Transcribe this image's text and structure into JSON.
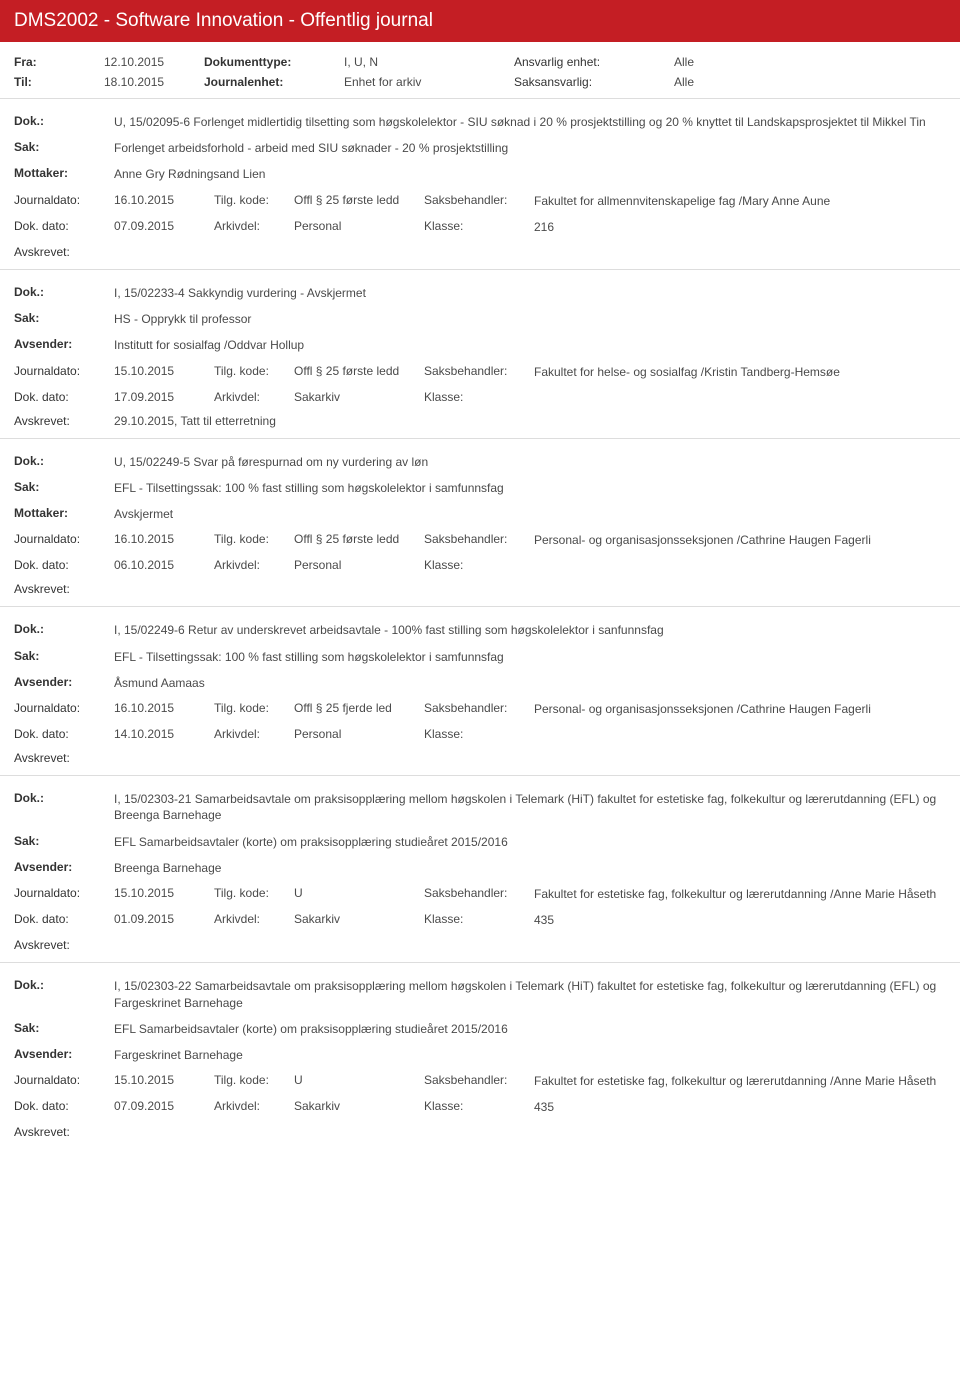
{
  "header": {
    "title": "DMS2002 - Software Innovation - Offentlig journal"
  },
  "meta": {
    "fra_label": "Fra:",
    "fra": "12.10.2015",
    "til_label": "Til:",
    "til": "18.10.2015",
    "doktype_label": "Dokumenttype:",
    "doktype": "I, U, N",
    "journalenhet_label": "Journalenhet:",
    "journalenhet": "Enhet for arkiv",
    "ansvarlig_label": "Ansvarlig enhet:",
    "ansvarlig": "Alle",
    "saksansvarlig_label": "Saksansvarlig:",
    "saksansvarlig": "Alle"
  },
  "labels": {
    "dok": "Dok.:",
    "sak": "Sak:",
    "mottaker": "Mottaker:",
    "avsender": "Avsender:",
    "journaldato": "Journaldato:",
    "tilgkode": "Tilg. kode:",
    "saksbehandler": "Saksbehandler:",
    "dokdato": "Dok. dato:",
    "arkivdel": "Arkivdel:",
    "klasse": "Klasse:",
    "avskrevet": "Avskrevet:"
  },
  "entries": [
    {
      "dok": "U, 15/02095-6 Forlenget midlertidig tilsetting som høgskolelektor -  SIU søknad i 20 % prosjektstilling og 20 % knyttet til Landskapsprosjektet til Mikkel Tin",
      "sak": "Forlenget arbeidsforhold - arbeid med SIU søknader - 20 % prosjektstilling",
      "party_label": "Mottaker:",
      "party": "Anne Gry Rødningsand Lien",
      "journaldato": "16.10.2015",
      "tilgkode": "Offl § 25 første ledd",
      "saksbehandler": "Fakultet for allmennvitenskapelige fag /Mary Anne Aune",
      "dokdato": "07.09.2015",
      "arkivdel": "Personal",
      "klasse": "216",
      "avskrevet": ""
    },
    {
      "dok": "I, 15/02233-4 Sakkyndig vurdering - Avskjermet",
      "sak": "HS - Opprykk til professor",
      "party_label": "Avsender:",
      "party": "Institutt for sosialfag /Oddvar Hollup",
      "journaldato": "15.10.2015",
      "tilgkode": "Offl § 25 første ledd",
      "saksbehandler": "Fakultet for helse- og sosialfag /Kristin Tandberg-Hemsøe",
      "dokdato": "17.09.2015",
      "arkivdel": "Sakarkiv",
      "klasse": "",
      "avskrevet": "29.10.2015, Tatt til etterretning"
    },
    {
      "dok": "U, 15/02249-5 Svar på førespurnad om ny vurdering av løn",
      "sak": "EFL - Tilsettingssak: 100 % fast stilling som høgskolelektor i samfunnsfag",
      "party_label": "Mottaker:",
      "party": "Avskjermet",
      "journaldato": "16.10.2015",
      "tilgkode": "Offl § 25 første ledd",
      "saksbehandler": "Personal- og organisasjonsseksjonen /Cathrine Haugen Fagerli",
      "dokdato": "06.10.2015",
      "arkivdel": "Personal",
      "klasse": "",
      "avskrevet": ""
    },
    {
      "dok": "I, 15/02249-6 Retur av underskrevet arbeidsavtale - 100% fast stilling som høgskolelektor i sanfunnsfag",
      "sak": "EFL - Tilsettingssak: 100 % fast stilling som høgskolelektor i samfunnsfag",
      "party_label": "Avsender:",
      "party": "Åsmund Aamaas",
      "journaldato": "16.10.2015",
      "tilgkode": "Offl § 25 fjerde led",
      "saksbehandler": "Personal- og organisasjonsseksjonen /Cathrine Haugen Fagerli",
      "dokdato": "14.10.2015",
      "arkivdel": "Personal",
      "klasse": "",
      "avskrevet": ""
    },
    {
      "dok": "I, 15/02303-21 Samarbeidsavtale om praksisopplæring mellom høgskolen i Telemark (HiT) fakultet for estetiske fag, folkekultur og lærerutdanning (EFL) og Breenga Barnehage",
      "sak": "EFL Samarbeidsavtaler (korte) om praksisopplæring studieåret 2015/2016",
      "party_label": "Avsender:",
      "party": "Breenga Barnehage",
      "journaldato": "15.10.2015",
      "tilgkode": "U",
      "saksbehandler": "Fakultet for estetiske fag, folkekultur og lærerutdanning /Anne Marie Håseth",
      "dokdato": "01.09.2015",
      "arkivdel": "Sakarkiv",
      "klasse": "435",
      "avskrevet": ""
    },
    {
      "dok": "I, 15/02303-22 Samarbeidsavtale om praksisopplæring mellom høgskolen i Telemark (HiT) fakultet for estetiske fag, folkekultur og lærerutdanning (EFL) og Fargeskrinet Barnehage",
      "sak": "EFL Samarbeidsavtaler (korte) om praksisopplæring studieåret 2015/2016",
      "party_label": "Avsender:",
      "party": "Fargeskrinet Barnehage",
      "journaldato": "15.10.2015",
      "tilgkode": "U",
      "saksbehandler": "Fakultet for estetiske fag, folkekultur og lærerutdanning /Anne Marie Håseth",
      "dokdato": "07.09.2015",
      "arkivdel": "Sakarkiv",
      "klasse": "435",
      "avskrevet": ""
    }
  ]
}
